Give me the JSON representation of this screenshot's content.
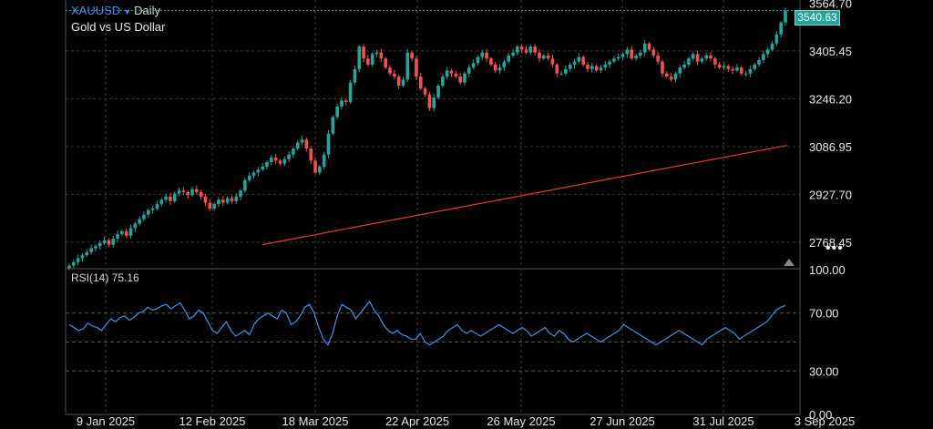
{
  "header": {
    "symbol": "XAUUSD",
    "timeframe": "Daily",
    "subtitle": "Gold vs US Dollar"
  },
  "price_badge": "3540.63",
  "rsi_label": "RSI(14) 75.16",
  "more_menu": "•••",
  "colors": {
    "up": "#26a69a",
    "down": "#ef5350",
    "ma": "#e53935",
    "rsi": "#4a90e2",
    "grid": "#3a3a3a"
  },
  "chart_data": [
    {
      "type": "candlestick",
      "title": "XAUUSD",
      "ylim": [
        2680,
        3575
      ],
      "y_ticks": [
        "3564.70",
        "3405.45",
        "3246.20",
        "3086.95",
        "2927.70",
        "2768.45"
      ],
      "x_ticks": [
        "9 Jan 2025",
        "12 Feb 2025",
        "18 Mar 2025",
        "22 Apr 2025",
        "26 May 2025",
        "27 Jun 2025",
        "31 Jul 2025",
        "3 Sep 2025"
      ],
      "last_price": 3540.63,
      "series": [
        {
          "kind": "close",
          "values": [
            2690,
            2702,
            2715,
            2725,
            2735,
            2748,
            2755,
            2765,
            2775,
            2760,
            2780,
            2795,
            2805,
            2790,
            2815,
            2830,
            2845,
            2860,
            2875,
            2880,
            2895,
            2910,
            2920,
            2905,
            2930,
            2940,
            2935,
            2925,
            2945,
            2935,
            2920,
            2900,
            2880,
            2895,
            2910,
            2900,
            2915,
            2905,
            2920,
            2940,
            2975,
            2990,
            3000,
            3010,
            3020,
            3035,
            3050,
            3040,
            3030,
            3045,
            3060,
            3080,
            3100,
            3110,
            3080,
            3040,
            3000,
            3020,
            3060,
            3130,
            3185,
            3220,
            3240,
            3235,
            3300,
            3345,
            3420,
            3380,
            3360,
            3395,
            3400,
            3380,
            3350,
            3330,
            3320,
            3290,
            3310,
            3400,
            3380,
            3320,
            3280,
            3260,
            3215,
            3250,
            3290,
            3320,
            3340,
            3330,
            3320,
            3300,
            3330,
            3350,
            3365,
            3385,
            3400,
            3380,
            3360,
            3340,
            3350,
            3370,
            3390,
            3400,
            3420,
            3410,
            3400,
            3420,
            3400,
            3380,
            3390,
            3380,
            3360,
            3330,
            3330,
            3345,
            3360,
            3370,
            3385,
            3360,
            3345,
            3355,
            3340,
            3350,
            3360,
            3370,
            3380,
            3385,
            3395,
            3410,
            3380,
            3390,
            3400,
            3430,
            3410,
            3390,
            3370,
            3330,
            3320,
            3310,
            3330,
            3350,
            3360,
            3380,
            3395,
            3370,
            3380,
            3390,
            3380,
            3360,
            3350,
            3355,
            3345,
            3340,
            3350,
            3330,
            3330,
            3345,
            3360,
            3375,
            3395,
            3410,
            3430,
            3460,
            3500,
            3540
          ]
        },
        {
          "kind": "moving_average",
          "values_start_end": [
            2760,
            3091
          ]
        }
      ]
    },
    {
      "type": "line",
      "title": "RSI(14)",
      "ylim": [
        0,
        100
      ],
      "y_ticks": [
        "100.00",
        "70.00",
        "30.00",
        "0.00"
      ],
      "reference_lines": [
        70,
        50,
        30
      ],
      "series": [
        {
          "name": "RSI(14)",
          "values": [
            62,
            60,
            58,
            59,
            63,
            61,
            60,
            58,
            62,
            66,
            64,
            67,
            68,
            65,
            67,
            70,
            71,
            74,
            72,
            73,
            75,
            76,
            73,
            75,
            77,
            72,
            66,
            68,
            72,
            70,
            64,
            58,
            56,
            60,
            64,
            58,
            54,
            56,
            58,
            55,
            62,
            66,
            68,
            70,
            68,
            66,
            72,
            70,
            62,
            64,
            68,
            74,
            76,
            70,
            60,
            52,
            48,
            56,
            68,
            76,
            74,
            72,
            66,
            70,
            74,
            78,
            72,
            68,
            62,
            58,
            56,
            58,
            55,
            54,
            52,
            52,
            56,
            50,
            48,
            50,
            52,
            54,
            58,
            60,
            62,
            58,
            56,
            58,
            56,
            54,
            56,
            58,
            60,
            62,
            60,
            58,
            56,
            58,
            60,
            58,
            54,
            56,
            58,
            60,
            56,
            54,
            58,
            56,
            52,
            50,
            52,
            54,
            56,
            54,
            52,
            50,
            52,
            54,
            56,
            58,
            62,
            60,
            58,
            56,
            54,
            52,
            50,
            48,
            50,
            52,
            54,
            56,
            58,
            56,
            54,
            52,
            50,
            48,
            52,
            54,
            56,
            58,
            60,
            58,
            56,
            52,
            54,
            56,
            58,
            60,
            62,
            64,
            68,
            72,
            74,
            75.16
          ]
        }
      ]
    }
  ]
}
